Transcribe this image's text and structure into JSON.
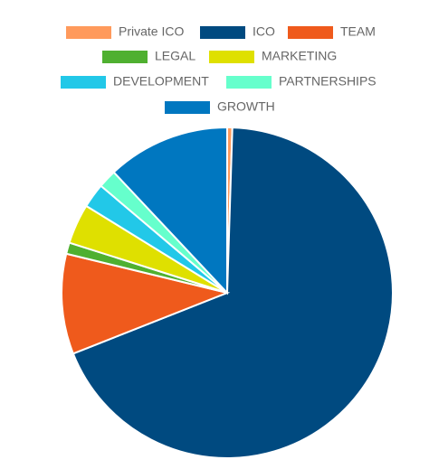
{
  "chart_data": {
    "type": "pie",
    "categories": [
      "Private ICO",
      "ICO",
      "TEAM",
      "LEGAL",
      "MARKETING",
      "DEVELOPMENT",
      "PARTNERSHIPS",
      "GROWTH"
    ],
    "values": [
      0.5,
      68.5,
      9.8,
      1.1,
      3.9,
      2.4,
      1.8,
      12
    ],
    "colors": [
      "#ff9a5c",
      "#004a80",
      "#ef5a1c",
      "#4fb030",
      "#dfe000",
      "#22c8e8",
      "#66ffcc",
      "#0077c0"
    ],
    "legend": "top"
  }
}
